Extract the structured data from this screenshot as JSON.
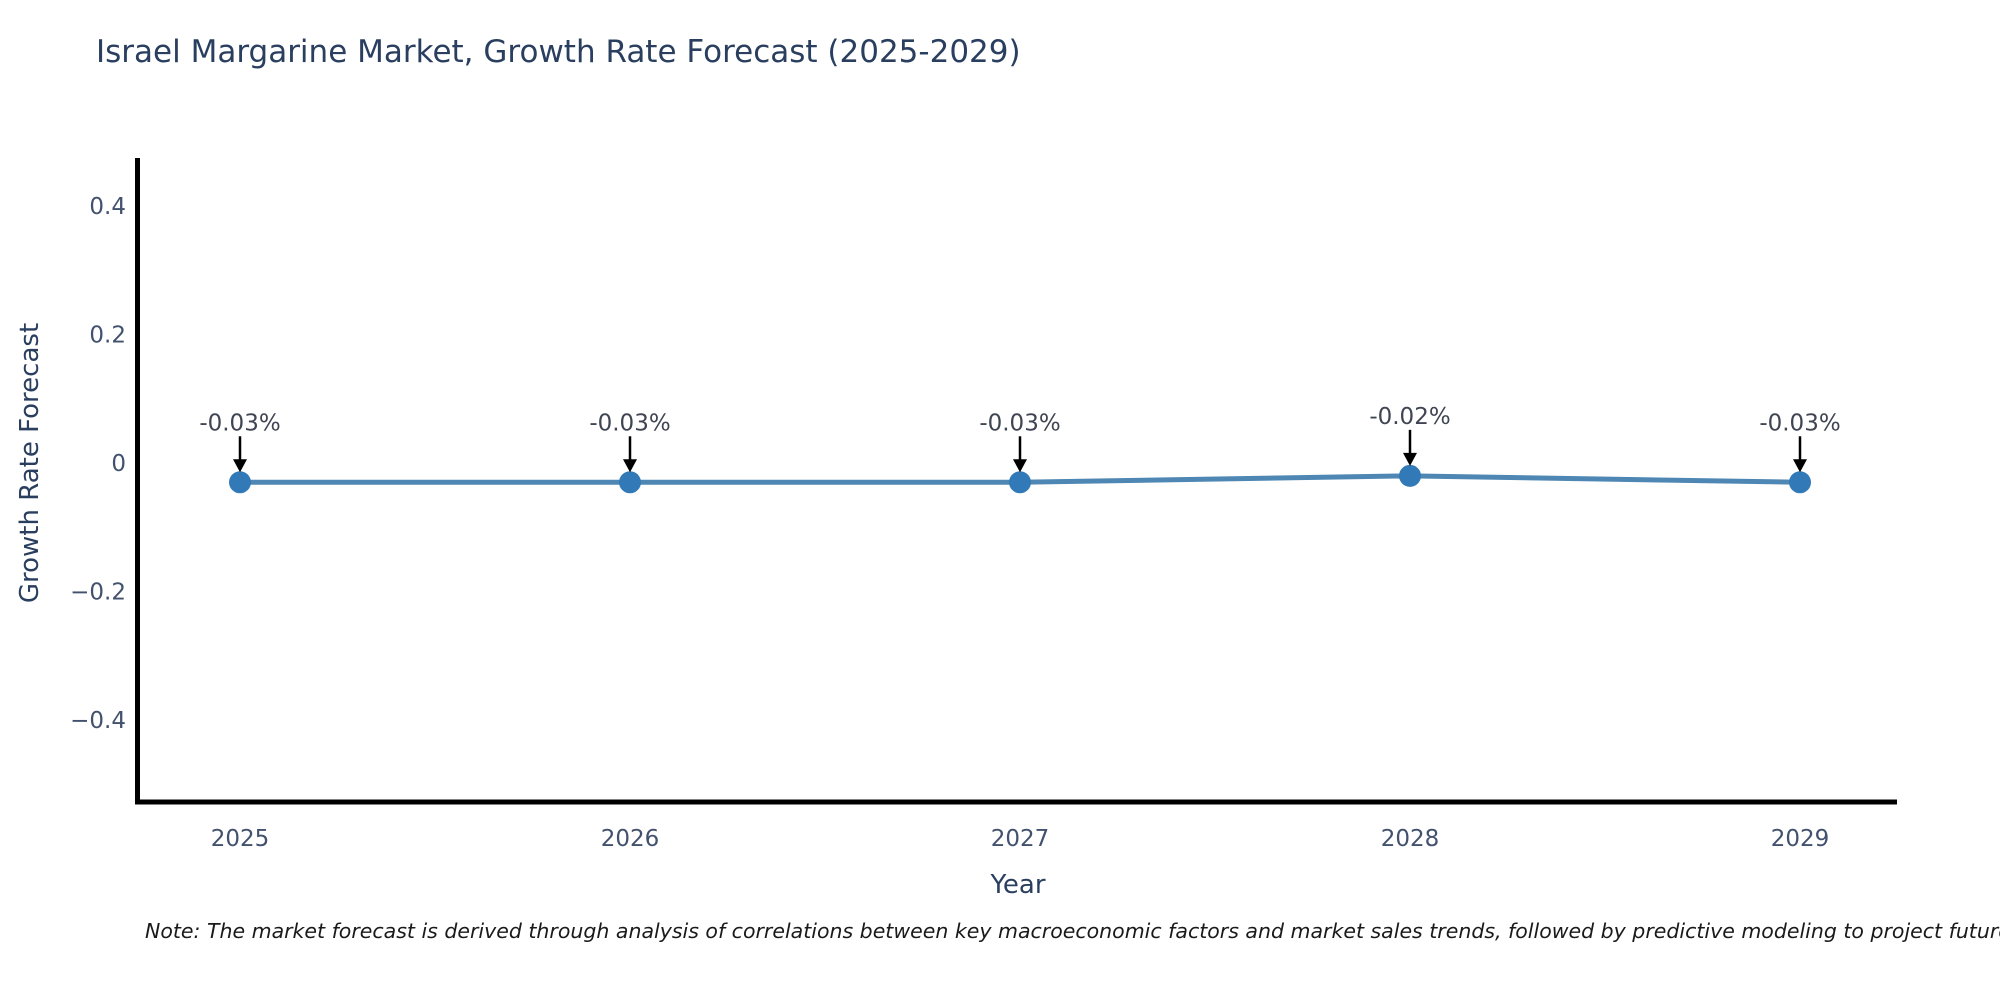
{
  "page": {
    "background": "#ffffff"
  },
  "chart_data": {
    "type": "line",
    "title": "Israel Margarine Market, Growth Rate Forecast (2025-2029)",
    "xlabel": "Year",
    "ylabel": "Growth Rate Forecast",
    "categories": [
      "2025",
      "2026",
      "2027",
      "2028",
      "2029"
    ],
    "values": [
      -0.03,
      -0.03,
      -0.03,
      -0.02,
      -0.03
    ],
    "point_labels": [
      "-0.03%",
      "-0.03%",
      "-0.03%",
      "-0.02%",
      "-0.03%"
    ],
    "yticks": [
      0.4,
      0.2,
      0,
      -0.2,
      -0.4
    ],
    "ylim": [
      -0.53,
      0.47
    ],
    "grid": false,
    "legend": false,
    "colors": {
      "line": "#4e87b3",
      "marker": "#3279b7",
      "axis_spine": "#000000",
      "annotation_arrow": "#000000",
      "title_text": "#2a3f5f",
      "tick_text": "#42516d"
    }
  },
  "note": {
    "text": "Note: The market forecast is derived through analysis of correlations between key macroeconomic factors and market sales trends, followed by predictive modeling to project future sales"
  }
}
